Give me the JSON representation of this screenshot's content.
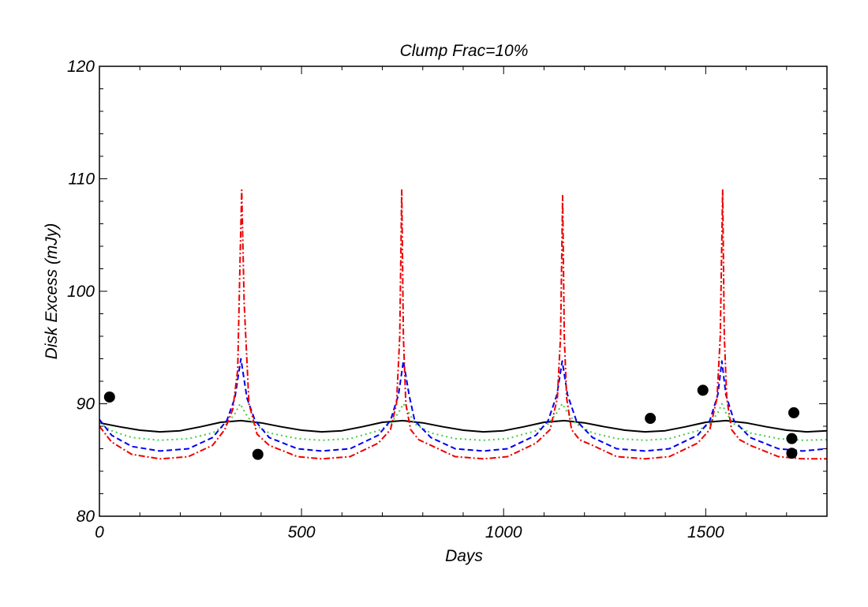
{
  "chart_data": {
    "type": "line",
    "title": "Clump Frac=10%",
    "xlabel": "Days",
    "ylabel": "Disk Excess (mJy)",
    "xlim": [
      0,
      1800
    ],
    "ylim": [
      80,
      120
    ],
    "xticks": [
      0,
      500,
      1000,
      1500
    ],
    "yticks": [
      80,
      90,
      100,
      110,
      120
    ],
    "grid": false,
    "series": [
      {
        "name": "solid",
        "style": "solid",
        "color": "#000000",
        "x": [
          0,
          50,
          100,
          150,
          200,
          250,
          300,
          350,
          400,
          450,
          500,
          550,
          600,
          650,
          700,
          750,
          800,
          850,
          900,
          950,
          1000,
          1050,
          1100,
          1150,
          1200,
          1250,
          1300,
          1350,
          1400,
          1450,
          1500,
          1550,
          1600,
          1650,
          1700,
          1750,
          1800
        ],
        "y": [
          88.3,
          87.95,
          87.65,
          87.5,
          87.6,
          87.95,
          88.35,
          88.5,
          88.3,
          87.95,
          87.65,
          87.5,
          87.6,
          87.95,
          88.35,
          88.5,
          88.3,
          87.95,
          87.65,
          87.5,
          87.6,
          87.95,
          88.35,
          88.5,
          88.3,
          87.95,
          87.65,
          87.5,
          87.6,
          87.95,
          88.35,
          88.5,
          88.3,
          87.95,
          87.65,
          87.5,
          87.6
        ]
      },
      {
        "name": "dotted",
        "style": "dotted",
        "color": "#44cc44",
        "x": [
          0,
          30,
          80,
          150,
          220,
          280,
          315,
          335,
          348,
          362,
          380,
          420,
          490,
          550,
          620,
          690,
          720,
          740,
          752,
          766,
          780,
          820,
          880,
          950,
          1010,
          1080,
          1110,
          1132,
          1145,
          1158,
          1180,
          1220,
          1280,
          1350,
          1410,
          1480,
          1510,
          1530,
          1540,
          1550,
          1570,
          1610,
          1680,
          1740,
          1800
        ],
        "y": [
          88.3,
          87.6,
          87.0,
          86.75,
          86.9,
          87.4,
          88.2,
          89.1,
          90.0,
          89.1,
          88.2,
          87.4,
          86.9,
          86.75,
          86.9,
          87.6,
          88.2,
          89.2,
          90.0,
          89.2,
          88.2,
          87.4,
          86.9,
          86.75,
          86.9,
          87.6,
          88.2,
          89.2,
          90.0,
          89.2,
          88.2,
          87.4,
          86.9,
          86.75,
          86.9,
          87.6,
          88.2,
          89.2,
          90.0,
          89.2,
          88.2,
          87.4,
          86.9,
          86.75,
          86.8
        ]
      },
      {
        "name": "dashed",
        "style": "dashed",
        "color": "#0000ee",
        "x": [
          0,
          30,
          80,
          150,
          220,
          280,
          315,
          335,
          350,
          365,
          385,
          420,
          490,
          550,
          620,
          690,
          720,
          740,
          752,
          766,
          780,
          820,
          880,
          950,
          1010,
          1080,
          1110,
          1132,
          1145,
          1158,
          1180,
          1220,
          1280,
          1350,
          1410,
          1480,
          1510,
          1530,
          1540,
          1550,
          1570,
          1610,
          1680,
          1740,
          1800
        ],
        "y": [
          88.6,
          87.2,
          86.2,
          85.8,
          86.0,
          87.0,
          88.5,
          90.5,
          94.0,
          90.5,
          88.5,
          87.0,
          86.0,
          85.8,
          86.0,
          87.2,
          88.5,
          90.8,
          93.8,
          90.8,
          88.5,
          87.0,
          86.0,
          85.8,
          86.0,
          87.2,
          88.5,
          90.8,
          93.8,
          90.8,
          88.5,
          87.0,
          86.0,
          85.8,
          86.0,
          87.2,
          88.5,
          90.8,
          93.8,
          90.8,
          88.5,
          87.0,
          86.0,
          85.8,
          86.0
        ]
      },
      {
        "name": "dash-dot",
        "style": "dashdot",
        "color": "#ee0000",
        "x": [
          0,
          30,
          80,
          150,
          220,
          280,
          310,
          330,
          342,
          348,
          352,
          358,
          370,
          390,
          420,
          490,
          550,
          620,
          690,
          720,
          735,
          743,
          748,
          752,
          758,
          770,
          790,
          820,
          880,
          950,
          1010,
          1080,
          1115,
          1133,
          1141,
          1146,
          1150,
          1156,
          1168,
          1188,
          1220,
          1280,
          1350,
          1410,
          1480,
          1510,
          1528,
          1536,
          1542,
          1546,
          1552,
          1564,
          1584,
          1610,
          1680,
          1740,
          1800
        ],
        "y": [
          88.0,
          86.6,
          85.5,
          85.1,
          85.3,
          86.3,
          87.7,
          89.5,
          93.0,
          103.0,
          109.0,
          99.0,
          90.0,
          87.3,
          86.3,
          85.3,
          85.1,
          85.3,
          86.5,
          87.7,
          90.0,
          96.0,
          109.0,
          96.0,
          90.0,
          87.7,
          86.8,
          86.3,
          85.3,
          85.1,
          85.3,
          86.5,
          87.7,
          90.5,
          96.0,
          108.5,
          96.0,
          90.5,
          87.7,
          86.8,
          86.3,
          85.3,
          85.1,
          85.3,
          86.5,
          87.7,
          90.5,
          96.0,
          109.0,
          96.0,
          90.5,
          87.7,
          86.8,
          86.3,
          85.3,
          85.1,
          85.1
        ]
      }
    ],
    "points": {
      "name": "observations",
      "color": "#000000",
      "x": [
        25,
        392,
        1363,
        1493,
        1713,
        1718,
        1713
      ],
      "y": [
        90.6,
        85.5,
        88.7,
        91.2,
        86.9,
        89.2,
        85.6
      ]
    }
  }
}
